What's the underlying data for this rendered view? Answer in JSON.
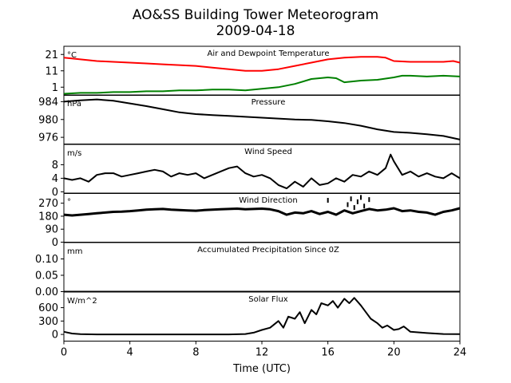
{
  "figure": {
    "title": "AO&SS Building Tower Meteorogram",
    "subtitle": "2009-04-18",
    "xlabel": "Time (UTC)"
  },
  "chart_data": [
    {
      "type": "line",
      "title": "Air and Dewpoint Temperature",
      "ylabel": "°C",
      "ylim": [
        -4,
        26
      ],
      "yticks": [
        1,
        11,
        21
      ],
      "xlim": [
        0,
        24
      ],
      "series": [
        {
          "color": "#ff0000",
          "x": [
            0,
            1,
            2,
            3,
            4,
            5,
            6,
            7,
            8,
            9,
            10,
            11,
            12,
            13,
            14,
            15,
            16,
            17,
            18,
            19,
            19.5,
            20,
            21,
            22,
            23,
            23.6,
            24
          ],
          "y": [
            19,
            18,
            17,
            16.5,
            16,
            15.5,
            15,
            14.5,
            14,
            13,
            12,
            11,
            11,
            12,
            14,
            16,
            18,
            19,
            19.5,
            19.5,
            19,
            17,
            16.5,
            16.5,
            16.5,
            17,
            16
          ]
        },
        {
          "color": "#008000",
          "x": [
            0,
            1,
            2,
            3,
            4,
            5,
            6,
            7,
            8,
            9,
            10,
            11,
            12,
            13,
            14,
            15,
            16,
            16.5,
            17,
            18,
            19,
            20,
            20.5,
            21,
            22,
            23,
            24
          ],
          "y": [
            -3,
            -2.5,
            -2.5,
            -2,
            -2,
            -1.5,
            -1.5,
            -1,
            -1,
            -0.5,
            -0.5,
            -1,
            0,
            1,
            3,
            6,
            7,
            6.5,
            4,
            5,
            5.5,
            7,
            8,
            8,
            7.5,
            8,
            7.5
          ]
        }
      ]
    },
    {
      "type": "line",
      "title": "Pressure",
      "ylabel": "hPa",
      "ylim": [
        974.5,
        985.5
      ],
      "yticks": [
        976,
        980,
        984
      ],
      "xlim": [
        0,
        24
      ],
      "series": [
        {
          "color": "#000000",
          "x": [
            0,
            1,
            2,
            3,
            4,
            5,
            6,
            7,
            8,
            9,
            10,
            11,
            12,
            13,
            14,
            15,
            16,
            17,
            18,
            19,
            20,
            21,
            22,
            23,
            24
          ],
          "y": [
            984,
            984.3,
            984.5,
            984.2,
            983.6,
            983,
            982.3,
            981.6,
            981.2,
            981,
            980.8,
            980.6,
            980.4,
            980.2,
            980,
            979.9,
            979.6,
            979.2,
            978.6,
            977.8,
            977.2,
            977,
            976.7,
            976.3,
            975.5
          ]
        }
      ]
    },
    {
      "type": "line",
      "title": "Wind Speed",
      "ylabel": "m/s",
      "ylim": [
        -0.5,
        14
      ],
      "yticks": [
        0,
        4,
        8
      ],
      "xlim": [
        0,
        24
      ],
      "series": [
        {
          "color": "#000000",
          "x": [
            0,
            0.5,
            1,
            1.5,
            2,
            2.5,
            3,
            3.5,
            4,
            4.5,
            5,
            5.5,
            6,
            6.5,
            7,
            7.5,
            8,
            8.5,
            9,
            9.5,
            10,
            10.5,
            11,
            11.5,
            12,
            12.5,
            13,
            13.5,
            14,
            14.5,
            15,
            15.5,
            16,
            16.5,
            17,
            17.5,
            18,
            18.5,
            19,
            19.5,
            19.8,
            20,
            20.5,
            21,
            21.5,
            22,
            22.5,
            23,
            23.5,
            24
          ],
          "y": [
            4,
            3.5,
            4,
            3,
            5,
            5.5,
            5.5,
            4.5,
            5,
            5.5,
            6,
            6.5,
            6,
            4.5,
            5.5,
            5,
            5.5,
            4,
            5,
            6,
            7,
            7.5,
            5.5,
            4.5,
            5,
            4,
            2,
            1,
            3,
            1.5,
            4,
            2,
            2.5,
            4,
            3,
            5,
            4.5,
            6,
            5,
            7,
            11,
            9,
            5,
            6,
            4.5,
            5.5,
            4.5,
            4,
            5.5,
            4
          ]
        }
      ]
    },
    {
      "type": "scatter",
      "title": "Wind Direction",
      "ylabel": "°",
      "ylim": [
        0,
        340
      ],
      "yticks": [
        0,
        90,
        180,
        270
      ],
      "xlim": [
        0,
        24
      ],
      "series": [
        {
          "color": "#000000",
          "x": [
            0,
            0.5,
            1,
            1.5,
            2,
            2.5,
            3,
            3.5,
            4,
            4.5,
            5,
            5.5,
            6,
            6.5,
            7,
            7.5,
            8,
            8.5,
            9,
            9.5,
            10,
            10.5,
            11,
            11.5,
            12,
            12.5,
            13,
            13.5,
            14,
            14.5,
            15,
            15.5,
            16,
            16.5,
            17,
            17.5,
            18,
            18.5,
            19,
            19.5,
            20,
            20.5,
            21,
            21.5,
            22,
            22.5,
            23,
            23.5,
            24
          ],
          "y": [
            190,
            185,
            190,
            195,
            200,
            205,
            210,
            212,
            215,
            220,
            225,
            228,
            230,
            225,
            222,
            220,
            218,
            222,
            225,
            228,
            230,
            232,
            228,
            230,
            232,
            228,
            215,
            190,
            205,
            200,
            215,
            195,
            210,
            190,
            220,
            200,
            215,
            230,
            220,
            225,
            235,
            215,
            220,
            210,
            205,
            190,
            210,
            220,
            235
          ]
        },
        {
          "color": "#000000",
          "x": [
            16,
            17.2,
            17.4,
            17.6,
            17.8,
            18,
            18.2,
            18.5
          ],
          "y": [
            290,
            260,
            300,
            240,
            280,
            310,
            250,
            295
          ]
        }
      ]
    },
    {
      "type": "line",
      "title": "Accumulated Precipitation Since 0Z",
      "ylabel": "mm",
      "ylim": [
        0,
        0.15
      ],
      "yticks": [
        0.0,
        0.05,
        0.1
      ],
      "ytick_labels": [
        "0.00",
        "0.05",
        "0.10"
      ],
      "xlim": [
        0,
        24
      ],
      "series": [
        {
          "color": "#000000",
          "x": [
            0,
            24
          ],
          "y": [
            0,
            0
          ]
        }
      ]
    },
    {
      "type": "line",
      "title": "Solar Flux",
      "ylabel": "W/m^2",
      "ylim": [
        -150,
        950
      ],
      "yticks": [
        0,
        300,
        600
      ],
      "xlim": [
        0,
        24
      ],
      "xticks": [
        0,
        4,
        8,
        12,
        16,
        20,
        24
      ],
      "series": [
        {
          "color": "#000000",
          "x": [
            0,
            0.5,
            1,
            2,
            3,
            4,
            5,
            6,
            7,
            8,
            9,
            10,
            11,
            11.5,
            12,
            12.5,
            13,
            13.3,
            13.6,
            14,
            14.3,
            14.6,
            15,
            15.3,
            15.6,
            16,
            16.3,
            16.6,
            17,
            17.3,
            17.6,
            18,
            18.3,
            18.6,
            19,
            19.3,
            19.6,
            20,
            20.3,
            20.6,
            21,
            22,
            23,
            24
          ],
          "y": [
            60,
            20,
            5,
            0,
            0,
            0,
            0,
            0,
            0,
            0,
            0,
            0,
            10,
            40,
            100,
            150,
            300,
            150,
            400,
            350,
            500,
            250,
            550,
            450,
            700,
            650,
            750,
            600,
            800,
            700,
            820,
            650,
            500,
            350,
            250,
            150,
            200,
            100,
            120,
            180,
            60,
            30,
            10,
            5
          ]
        }
      ]
    }
  ]
}
